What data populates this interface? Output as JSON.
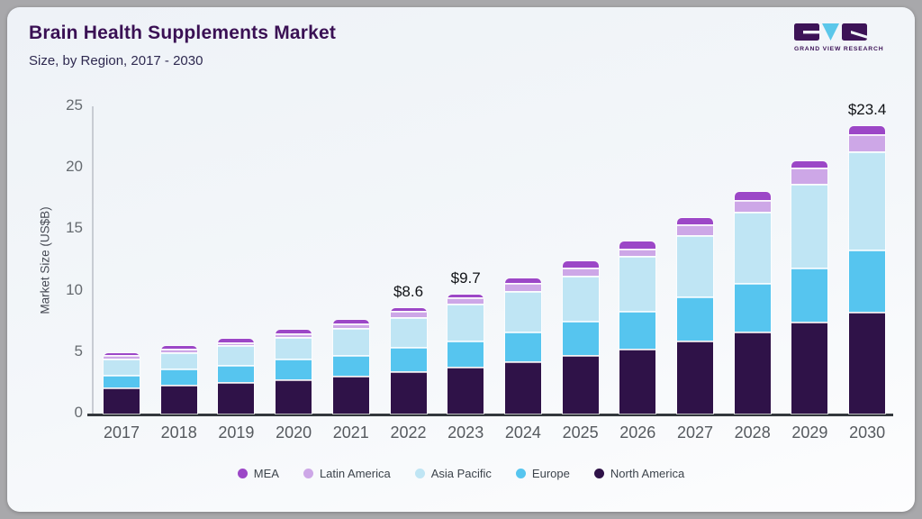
{
  "header": {
    "title": "Brain Health Supplements Market",
    "subtitle": "Size, by Region, 2017 - 2030",
    "logo_text": "GRAND VIEW RESEARCH"
  },
  "chart_data": {
    "type": "bar",
    "stacked": true,
    "title": "Brain Health Supplements Market",
    "subtitle": "Size, by Region, 2017 - 2030",
    "ylabel": "Market Size (US$B)",
    "ylim": [
      0,
      25
    ],
    "yticks": [
      0,
      5,
      10,
      15,
      20,
      25
    ],
    "grid": false,
    "legend_position": "bottom",
    "categories": [
      "2017",
      "2018",
      "2019",
      "2020",
      "2021",
      "2022",
      "2023",
      "2024",
      "2025",
      "2026",
      "2027",
      "2028",
      "2029",
      "2030"
    ],
    "series": [
      {
        "name": "North America",
        "color": "#2f1248",
        "values": [
          2.15,
          2.35,
          2.55,
          2.8,
          3.1,
          3.45,
          3.8,
          4.25,
          4.75,
          5.3,
          5.95,
          6.7,
          7.45,
          8.3
        ]
      },
      {
        "name": "Europe",
        "color": "#56c5ef",
        "values": [
          1.0,
          1.3,
          1.4,
          1.65,
          1.7,
          1.95,
          2.15,
          2.45,
          2.8,
          3.05,
          3.55,
          3.9,
          4.4,
          5.05
        ]
      },
      {
        "name": "Asia Pacific",
        "color": "#bfe5f4",
        "values": [
          1.35,
          1.35,
          1.6,
          1.75,
          2.2,
          2.45,
          3.0,
          3.3,
          3.7,
          4.45,
          5.05,
          5.85,
          6.85,
          8.0
        ]
      },
      {
        "name": "Latin America",
        "color": "#cda7e7",
        "values": [
          0.25,
          0.3,
          0.25,
          0.35,
          0.3,
          0.5,
          0.5,
          0.65,
          0.65,
          0.6,
          0.85,
          0.95,
          1.3,
          1.35
        ]
      },
      {
        "name": "MEA",
        "color": "#9c47c7",
        "values": [
          0.15,
          0.2,
          0.25,
          0.3,
          0.3,
          0.25,
          0.25,
          0.35,
          0.5,
          0.6,
          0.5,
          0.6,
          0.55,
          0.7
        ]
      }
    ],
    "stack_order": "bottom-to-top",
    "legend_order": [
      "MEA",
      "Latin America",
      "Asia Pacific",
      "Europe",
      "North America"
    ],
    "bar_labels": {
      "2022": "$8.6",
      "2023": "$9.7",
      "2030": "$23.4"
    },
    "totals": [
      4.9,
      5.5,
      6.05,
      6.85,
      7.6,
      8.6,
      9.7,
      11.0,
      12.4,
      14.0,
      15.9,
      18.0,
      20.55,
      23.4
    ]
  },
  "colors": {
    "outer_background": "#a8a8ab",
    "card_background_top": "#eef2f7",
    "card_background_bottom": "#fdfdfe",
    "title_text": "#3a1054",
    "subtitle_text": "#2e2950",
    "axis_line": "#c8ccd3",
    "baseline": "#33383d",
    "tick_text": "#5f646a",
    "bar_label_text": "#111317",
    "logo_purple": "#3d1357",
    "logo_cyan": "#5bc7ea"
  }
}
